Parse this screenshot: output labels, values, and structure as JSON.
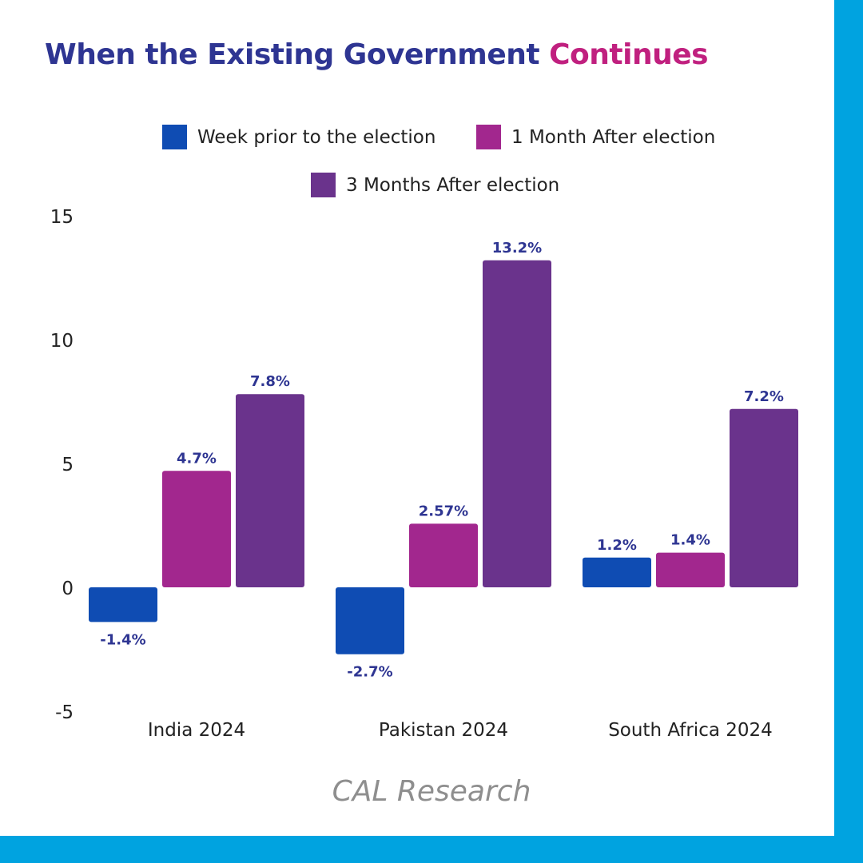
{
  "title": {
    "part1": "When the Existing Government",
    "part2": "Continues",
    "color1": "#2e3592",
    "color2": "#c0207f"
  },
  "frame_color": "#00a3e0",
  "source": "CAL Research",
  "chart_data": {
    "type": "bar",
    "categories": [
      "India 2024",
      "Pakistan 2024",
      "South Africa 2024"
    ],
    "series": [
      {
        "name": "Week prior to the election",
        "color": "#0f4cb3",
        "values": [
          -1.4,
          -2.7,
          1.2
        ],
        "labels": [
          "-1.4%",
          "-2.7%",
          "1.2%"
        ]
      },
      {
        "name": "1 Month After election",
        "color": "#a2278e",
        "values": [
          4.7,
          2.57,
          1.4
        ],
        "labels": [
          "4.7%",
          "2.57%",
          "1.4%"
        ]
      },
      {
        "name": "3 Months After election",
        "color": "#6a338c",
        "values": [
          7.8,
          13.2,
          7.2
        ],
        "labels": [
          "7.8%",
          "13.2%",
          "7.2%"
        ]
      }
    ],
    "yticks": [
      15,
      10,
      5,
      0,
      -5
    ],
    "ylim": [
      -5,
      15
    ],
    "legend_position": "top",
    "grid": false,
    "data_label_color": "#2e3592"
  }
}
